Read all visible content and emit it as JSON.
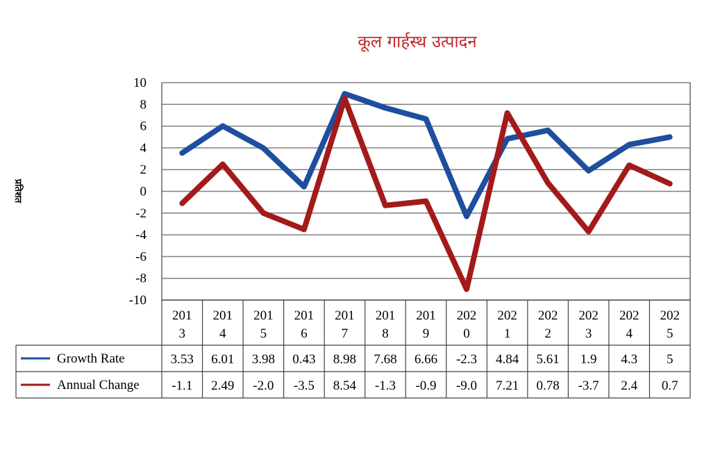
{
  "chart_data": {
    "type": "line",
    "title": "कूल गार्हस्थ उत्पादन",
    "ylabel": "प्रतिशत",
    "xlabel": "",
    "ylim": [
      -10,
      10
    ],
    "yticks": [
      "10",
      "8",
      "6",
      "4",
      "2",
      "0",
      "-2",
      "-4",
      "-6",
      "-8",
      "-10"
    ],
    "grid": true,
    "legend": "data-table-left",
    "categories": [
      [
        "201",
        "3"
      ],
      [
        "201",
        "4"
      ],
      [
        "201",
        "5"
      ],
      [
        "201",
        "6"
      ],
      [
        "201",
        "7"
      ],
      [
        "201",
        "8"
      ],
      [
        "201",
        "9"
      ],
      [
        "202",
        "0"
      ],
      [
        "202",
        "1"
      ],
      [
        "202",
        "2"
      ],
      [
        "202",
        "3"
      ],
      [
        "202",
        "4"
      ],
      [
        "202",
        "5"
      ]
    ],
    "series": [
      {
        "name": "Growth Rate",
        "color": "#1f4e9f",
        "values": [
          3.53,
          6.01,
          3.98,
          0.43,
          8.98,
          7.68,
          6.66,
          -2.3,
          4.84,
          5.61,
          1.9,
          4.3,
          5
        ],
        "labels": [
          "3.53",
          "6.01",
          "3.98",
          "0.43",
          "8.98",
          "7.68",
          "6.66",
          "-2.3",
          "4.84",
          "5.61",
          "1.9",
          "4.3",
          "5"
        ]
      },
      {
        "name": "Annual Change",
        "color": "#a31a1a",
        "values": [
          -1.1,
          2.49,
          -2.0,
          -3.5,
          8.54,
          -1.3,
          -0.9,
          -9.0,
          7.21,
          0.78,
          -3.7,
          2.4,
          0.7
        ],
        "labels": [
          "-1.1",
          "2.49",
          "-2.0",
          "-3.5",
          "8.54",
          "-1.3",
          "-0.9",
          "-9.0",
          "7.21",
          "0.78",
          "-3.7",
          "2.4",
          "0.7"
        ]
      }
    ]
  }
}
